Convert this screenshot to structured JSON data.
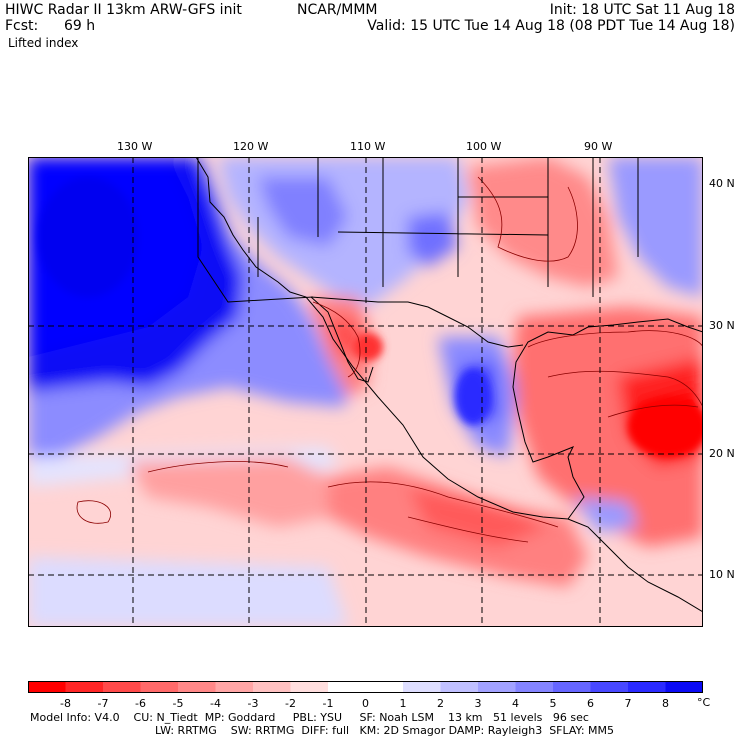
{
  "header": {
    "title": "HIWC Radar II 13km ARW-GFS init",
    "org": "NCAR/MMM",
    "fcst_label": "Fcst:",
    "fcst_value": "69 h",
    "init": "Init: 18 UTC Sat 11 Aug 18",
    "valid": "Valid: 15 UTC Tue 14 Aug 18 (08 PDT Tue 14 Aug 18)",
    "field": "Lifted index"
  },
  "map": {
    "lon_labels": [
      "130 W",
      "120 W",
      "110 W",
      "100 W",
      "90 W"
    ],
    "lat_labels": [
      "40 N",
      "30 N",
      "20 N",
      "10 N"
    ]
  },
  "legend": {
    "labels": [
      "-8",
      "-7",
      "-6",
      "-5",
      "-4",
      "-3",
      "-2",
      "-1",
      "0",
      "1",
      "2",
      "3",
      "4",
      "5",
      "6",
      "7",
      "8"
    ],
    "unit": "°C",
    "colors": [
      "#ff0000",
      "#ff2626",
      "#ff4a4a",
      "#ff6a6a",
      "#ff8888",
      "#ffa6a6",
      "#ffc2c2",
      "#ffdede",
      "#ffffff",
      "#dedeff",
      "#c0c0ff",
      "#a2a2ff",
      "#8484ff",
      "#6666ff",
      "#4848ff",
      "#2a2aff",
      "#0a0af5"
    ]
  },
  "footer": {
    "line1": "Model Info: V4.0    CU: N_Tiedt  MP: Goddard     PBL: YSU     SF: Noah LSM    13 km   51 levels   96 sec",
    "line2": "LW: RRTMG    SW: RRTMG  DIFF: full   KM: 2D Smagor DAMP: Rayleigh3  SFLAY: MM5"
  }
}
